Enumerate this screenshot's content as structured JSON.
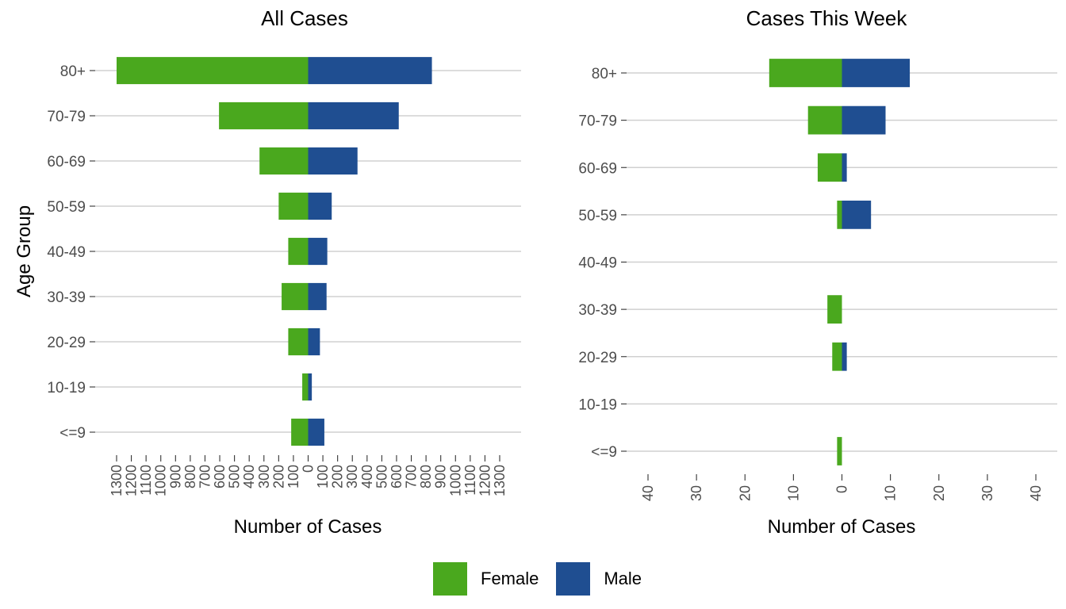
{
  "chart_data": [
    {
      "type": "bar",
      "orientation": "horizontal-diverging",
      "title": "All Cases",
      "xlabel": "Number of Cases",
      "ylabel": "Age Group",
      "categories": [
        "<=9",
        "10-19",
        "20-29",
        "30-39",
        "40-49",
        "50-59",
        "60-69",
        "70-79",
        "80+"
      ],
      "series": [
        {
          "name": "Female",
          "color": "#4aa81e",
          "values": [
            115,
            40,
            135,
            180,
            135,
            200,
            330,
            605,
            1300
          ]
        },
        {
          "name": "Male",
          "color": "#1f4e91",
          "values": [
            110,
            25,
            80,
            125,
            130,
            160,
            335,
            615,
            840
          ]
        }
      ],
      "xticks": [
        "1300",
        "1200",
        "1100",
        "1000",
        "900",
        "800",
        "700",
        "600",
        "500",
        "400",
        "300",
        "200",
        "100",
        "0",
        "100",
        "200",
        "300",
        "400",
        "500",
        "600",
        "700",
        "800",
        "900",
        "1000",
        "1100",
        "1200",
        "1300"
      ],
      "xlim": [
        -1300,
        1300
      ],
      "grid": "horizontal"
    },
    {
      "type": "bar",
      "orientation": "horizontal-diverging",
      "title": "Cases This Week",
      "xlabel": "Number of Cases",
      "ylabel": "",
      "categories": [
        "<=9",
        "10-19",
        "20-29",
        "30-39",
        "40-49",
        "50-59",
        "60-69",
        "70-79",
        "80+"
      ],
      "series": [
        {
          "name": "Female",
          "color": "#4aa81e",
          "values": [
            1,
            0,
            2,
            3,
            0,
            1,
            5,
            7,
            15
          ]
        },
        {
          "name": "Male",
          "color": "#1f4e91",
          "values": [
            0,
            0,
            1,
            0,
            0,
            6,
            1,
            9,
            14
          ]
        }
      ],
      "xticks": [
        "40",
        "30",
        "20",
        "10",
        "0",
        "10",
        "20",
        "30",
        "40"
      ],
      "xlim": [
        -40,
        40
      ],
      "grid": "horizontal"
    }
  ],
  "legend": {
    "placement": "bottom",
    "items": [
      {
        "label": "Female",
        "color": "#4aa81e"
      },
      {
        "label": "Male",
        "color": "#1f4e91"
      }
    ]
  }
}
